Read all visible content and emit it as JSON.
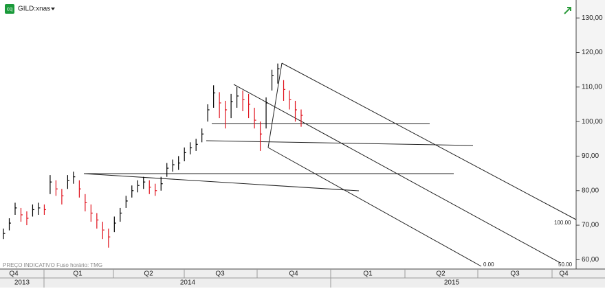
{
  "header": {
    "symbol": "GILD:xnas",
    "icon": "cq"
  },
  "footer_note": "PREÇO INDICATIVO   Fuso horário: TMG",
  "time_axis": {
    "quarters": [
      "Q4",
      "Q1",
      "Q2",
      "Q3",
      "Q4",
      "Q1",
      "Q2",
      "Q3",
      "Q4"
    ],
    "years": [
      "2013",
      "2014",
      "2015"
    ]
  },
  "annotations": [
    "100.00",
    "0.00",
    "50.00"
  ],
  "chart_data": {
    "type": "ohlc",
    "close": [
      67.6,
      70.6,
      75,
      73,
      72,
      74.5,
      75,
      74.5,
      82.5,
      80.5,
      78.5,
      83,
      84,
      80.5,
      76.5,
      73.5,
      71.5,
      68.6,
      66.6,
      70.6,
      73.5,
      77,
      80,
      81.5,
      82.5,
      81,
      80,
      82,
      86.5,
      87.5,
      88,
      91,
      92.4,
      93.4,
      96.4,
      103.4,
      108.3,
      105.4,
      103.4,
      105.8,
      107.4,
      106.4,
      105,
      100.4,
      96.4,
      105.4,
      113.3,
      115.3,
      109.3,
      106.4,
      103.4,
      101.8
    ],
    "high": [
      69,
      72,
      76.5,
      75,
      74,
      76,
      76.5,
      76,
      84.5,
      83,
      80.5,
      84.5,
      85.5,
      83,
      79,
      76,
      73.5,
      71,
      69,
      72.5,
      75,
      78.5,
      81.5,
      83,
      84,
      83,
      82,
      84,
      88,
      89,
      90,
      92.5,
      94,
      95,
      98,
      105,
      110.5,
      108.5,
      106,
      108,
      110,
      109,
      108,
      104,
      100,
      107,
      115,
      116.8,
      112,
      109,
      106,
      103.5
    ],
    "low": [
      66,
      68.5,
      73,
      71,
      70,
      72.5,
      73,
      73,
      79,
      78.5,
      76,
      80.5,
      82,
      78,
      74,
      71,
      69,
      66,
      63.5,
      68,
      71,
      75,
      78,
      79.5,
      80.5,
      79,
      78.5,
      80,
      84,
      85.5,
      86,
      88.5,
      90.5,
      91.5,
      94,
      100,
      104,
      101,
      98,
      101,
      104,
      103,
      101,
      98,
      91.5,
      98,
      109,
      111,
      106,
      103.5,
      100,
      98.5
    ],
    "up_color": "#000000",
    "down_color": "#e0111c",
    "ylim": [
      57.3,
      135.2
    ],
    "yticks": [
      {
        "value": 60,
        "label": "60,00"
      },
      {
        "value": 70,
        "label": "70,00"
      },
      {
        "value": 80,
        "label": "80,00"
      },
      {
        "value": 90,
        "label": "90,00"
      },
      {
        "value": 100,
        "label": "100,00"
      },
      {
        "value": 110,
        "label": "110,00"
      },
      {
        "value": 120,
        "label": "120,00"
      },
      {
        "value": 130,
        "label": "130,00"
      }
    ]
  }
}
